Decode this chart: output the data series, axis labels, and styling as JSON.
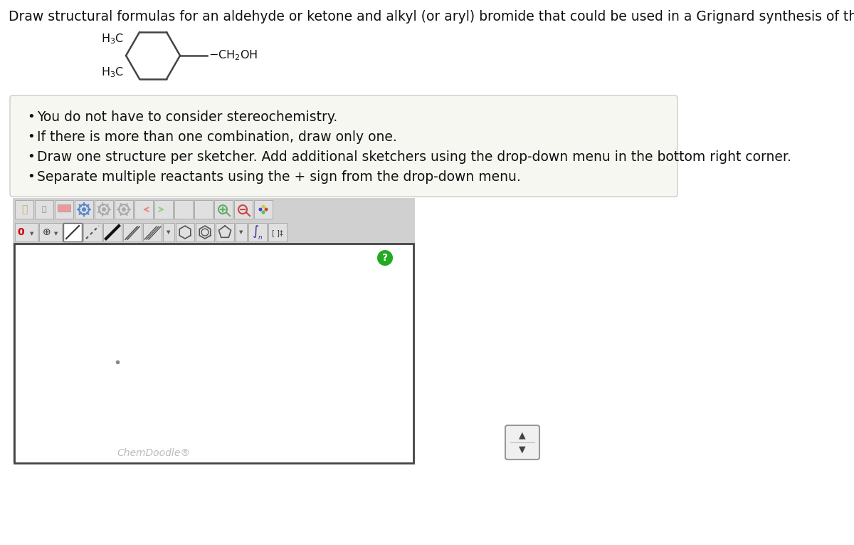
{
  "title": "Draw structural formulas for an aldehyde or ketone and alkyl (or aryl) bromide that could be used in a Grignard synthesis of the alcohol shown.",
  "title_fontsize": 13.5,
  "background_color": "#ffffff",
  "bullet_box_color": "#f7f7f2",
  "bullet_box_border": "#cccccc",
  "bullets": [
    "You do not have to consider stereochemistry.",
    "If there is more than one combination, draw only one.",
    "Draw one structure per sketcher. Add additional sketchers using the drop-down menu in the bottom right corner.",
    "Separate multiple reactants using the + sign from the drop-down menu."
  ],
  "bullet_fontsize": 13.5,
  "chemdoodle_label": "ChemDoodle®",
  "chemdoodle_fontsize": 10,
  "question_btn_color": "#22aa22",
  "question_btn_text": "?"
}
